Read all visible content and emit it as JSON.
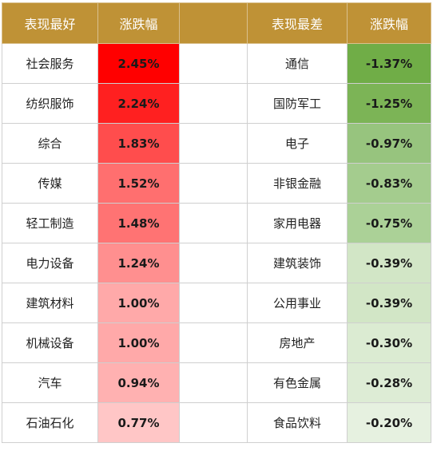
{
  "headers": {
    "best": "表现最好",
    "best_change": "涨跌幅",
    "worst": "表现最差",
    "worst_change": "涨跌幅"
  },
  "rows": [
    {
      "best": "社会服务",
      "best_change": "2.45%",
      "best_color": "#ff0000",
      "worst": "通信",
      "worst_change": "-1.37%",
      "worst_color": "#70ad47"
    },
    {
      "best": "纺织服饰",
      "best_change": "2.24%",
      "best_color": "#ff2020",
      "worst": "国防军工",
      "worst_change": "-1.25%",
      "worst_color": "#7cb456"
    },
    {
      "best": "综合",
      "best_change": "1.83%",
      "best_color": "#ff4d4d",
      "worst": "电子",
      "worst_change": "-0.97%",
      "worst_color": "#97c47e"
    },
    {
      "best": "传媒",
      "best_change": "1.52%",
      "best_color": "#ff6f6f",
      "worst": "非银金融",
      "worst_change": "-0.83%",
      "worst_color": "#a4cc8e"
    },
    {
      "best": "轻工制造",
      "best_change": "1.48%",
      "best_color": "#ff7373",
      "worst": "家用电器",
      "worst_change": "-0.75%",
      "worst_color": "#abd197"
    },
    {
      "best": "电力设备",
      "best_change": "1.24%",
      "best_color": "#ff8f8f",
      "worst": "建筑装饰",
      "worst_change": "-0.39%",
      "worst_color": "#d2e6c6"
    },
    {
      "best": "建筑材料",
      "best_change": "1.00%",
      "best_color": "#ffa9a9",
      "worst": "公用事业",
      "worst_change": "-0.39%",
      "worst_color": "#d2e6c6"
    },
    {
      "best": "机械设备",
      "best_change": "1.00%",
      "best_color": "#ffa9a9",
      "worst": "房地产",
      "worst_change": "-0.30%",
      "worst_color": "#dbebd2"
    },
    {
      "best": "汽车",
      "best_change": "0.94%",
      "best_color": "#ffb1b1",
      "worst": "有色金属",
      "worst_change": "-0.28%",
      "worst_color": "#ddecd5"
    },
    {
      "best": "石油石化",
      "best_change": "0.77%",
      "best_color": "#ffc6c6",
      "worst": "食品饮料",
      "worst_change": "-0.20%",
      "worst_color": "#e6f1e0"
    }
  ]
}
